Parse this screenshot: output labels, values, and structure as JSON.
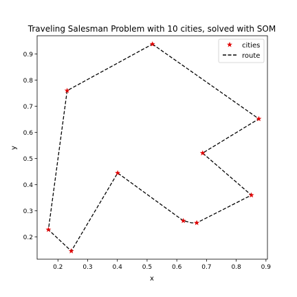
{
  "chart_data": {
    "type": "scatter",
    "title": "Traveling Salesman Problem with 10 cities, solved with SOM",
    "xlabel": "x",
    "ylabel": "y",
    "xlim": [
      0.13,
      0.905
    ],
    "ylim": [
      0.115,
      0.97
    ],
    "xticks": [
      0.2,
      0.3,
      0.4,
      0.5,
      0.6,
      0.7,
      0.8,
      0.9
    ],
    "xtick_labels": [
      "0.2",
      "0.3",
      "0.4",
      "0.5",
      "0.6",
      "0.7",
      "0.8",
      "0.9"
    ],
    "yticks": [
      0.2,
      0.3,
      0.4,
      0.5,
      0.6,
      0.7,
      0.8,
      0.9
    ],
    "ytick_labels": [
      "0.2",
      "0.3",
      "0.4",
      "0.5",
      "0.6",
      "0.7",
      "0.8",
      "0.9"
    ],
    "grid": false,
    "legend_position": "top-right",
    "series": [
      {
        "name": "cities",
        "marker": "star",
        "color": "#e00000",
        "points": [
          {
            "x": 0.518,
            "y": 0.938
          },
          {
            "x": 0.876,
            "y": 0.652
          },
          {
            "x": 0.687,
            "y": 0.521
          },
          {
            "x": 0.851,
            "y": 0.36
          },
          {
            "x": 0.667,
            "y": 0.254
          },
          {
            "x": 0.622,
            "y": 0.262
          },
          {
            "x": 0.401,
            "y": 0.445
          },
          {
            "x": 0.245,
            "y": 0.146
          },
          {
            "x": 0.168,
            "y": 0.228
          },
          {
            "x": 0.231,
            "y": 0.76
          }
        ]
      },
      {
        "name": "route",
        "style": "dashed",
        "color": "#000000",
        "points": [
          {
            "x": 0.518,
            "y": 0.938
          },
          {
            "x": 0.876,
            "y": 0.652
          },
          {
            "x": 0.687,
            "y": 0.521
          },
          {
            "x": 0.851,
            "y": 0.36
          },
          {
            "x": 0.667,
            "y": 0.254
          },
          {
            "x": 0.65,
            "y": 0.254
          },
          {
            "x": 0.622,
            "y": 0.262
          },
          {
            "x": 0.401,
            "y": 0.445
          },
          {
            "x": 0.245,
            "y": 0.146
          },
          {
            "x": 0.168,
            "y": 0.228
          },
          {
            "x": 0.231,
            "y": 0.76
          },
          {
            "x": 0.518,
            "y": 0.938
          }
        ]
      }
    ]
  }
}
